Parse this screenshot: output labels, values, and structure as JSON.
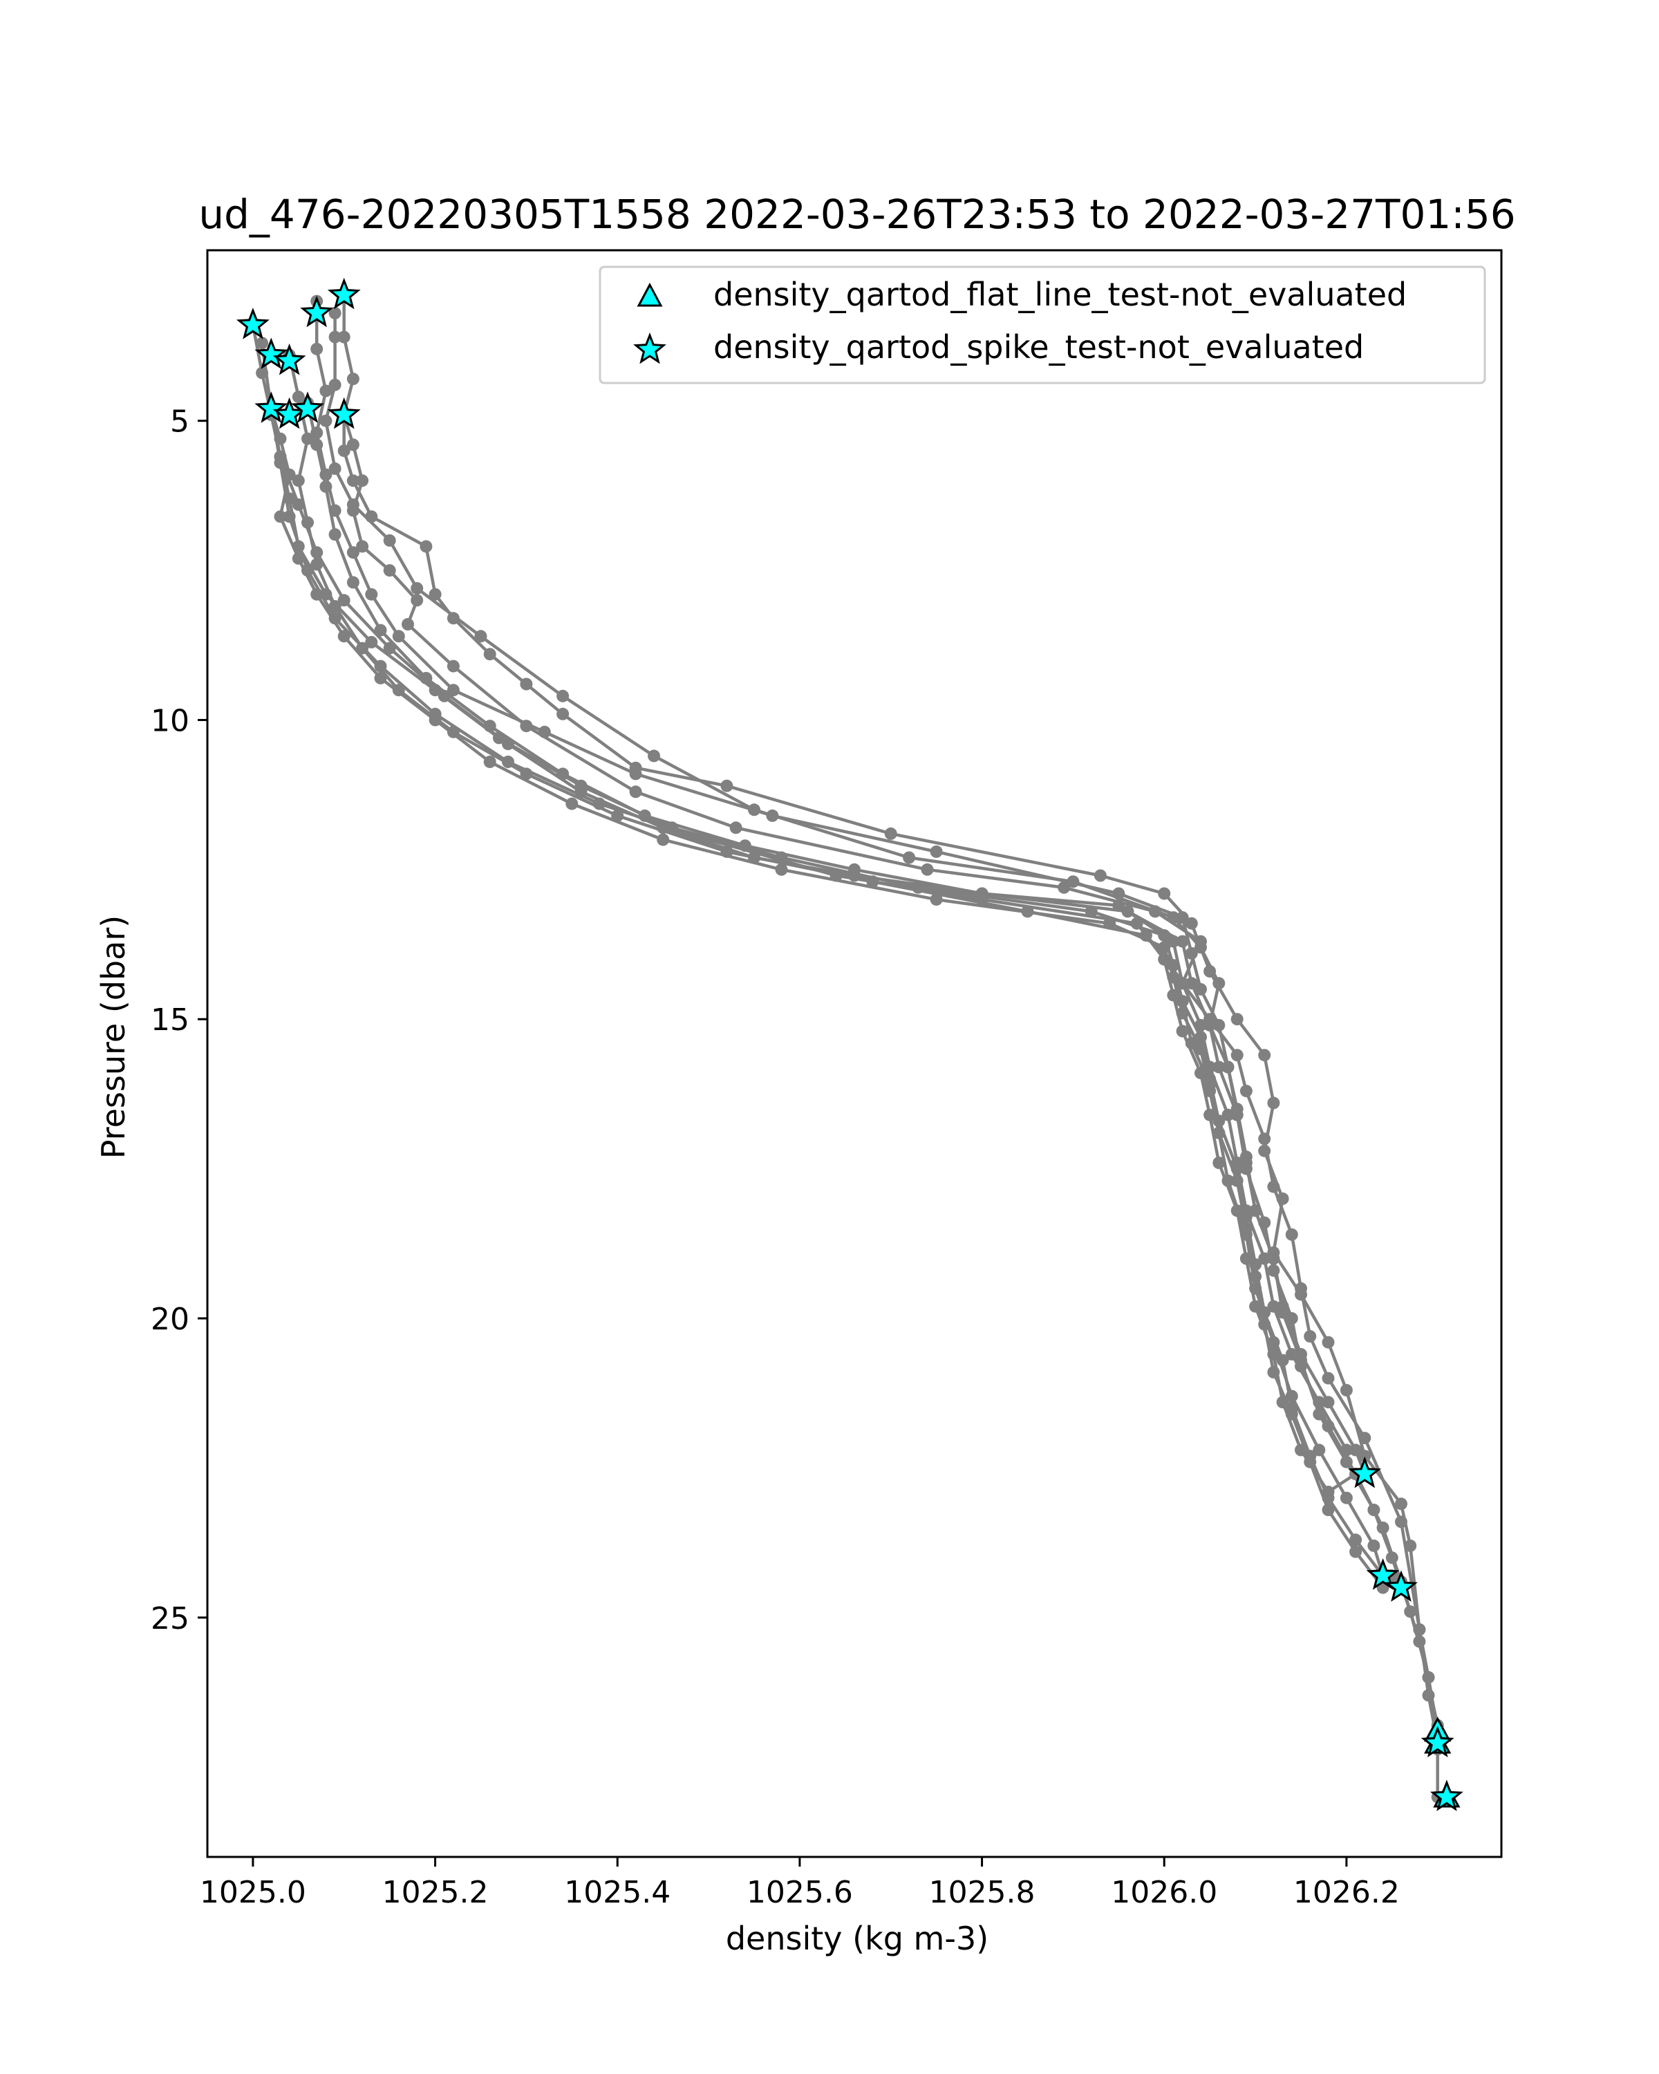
{
  "chart_data": {
    "type": "line",
    "title": "ud_476-20220305T1558 2022-03-26T23:53 to 2022-03-27T01:56",
    "xlabel": "density (kg m-3)",
    "ylabel": "Pressure (dbar)",
    "xlim": [
      1024.95,
      1026.37
    ],
    "ylim": [
      29.0,
      2.15
    ],
    "y_inverted": true,
    "x_ticks": [
      1025.0,
      1025.2,
      1025.4,
      1025.6,
      1025.8,
      1026.0,
      1026.2
    ],
    "x_tick_labels": [
      "1025.0",
      "1025.2",
      "1025.4",
      "1025.6",
      "1025.8",
      "1026.0",
      "1026.2"
    ],
    "y_ticks": [
      5,
      10,
      15,
      20,
      25
    ],
    "y_tick_labels": [
      "5",
      "10",
      "15",
      "20",
      "25"
    ],
    "grid": false,
    "legend_position": "top-right",
    "colors": {
      "profile": "#808080",
      "flag_fill": "#00ffff",
      "flag_edge": "#000000"
    },
    "legend": [
      {
        "label": "density_qartod_flat_line_test-not_evaluated",
        "marker": "triangle"
      },
      {
        "label": "density_qartod_spike_test-not_evaluated",
        "marker": "star"
      }
    ],
    "series": [
      {
        "x": [
          1025.1,
          1025.1,
          1025.11,
          1025.1,
          1025.1,
          1025.11,
          1025.13,
          1025.19,
          1025.2,
          1025.22,
          1025.26,
          1025.3,
          1025.34,
          1025.42,
          1025.52,
          1025.7,
          1025.93,
          1026.0,
          1026.03,
          1026.05,
          1026.08,
          1026.11,
          1026.12,
          1026.11,
          1026.13,
          1026.12,
          1026.15,
          1026.18,
          1026.2,
          1026.22,
          1026.26,
          1026.27,
          1026.28,
          1026.29,
          1026.3,
          1026.3
        ],
        "y": [
          2.9,
          3.6,
          4.3,
          4.9,
          5.5,
          6.0,
          6.6,
          7.1,
          7.9,
          8.3,
          8.9,
          9.4,
          9.9,
          10.8,
          11.1,
          11.9,
          12.6,
          12.9,
          13.4,
          14.2,
          15.0,
          15.6,
          16.4,
          17.2,
          18.0,
          18.9,
          19.6,
          20.4,
          21.2,
          22.3,
          23.1,
          23.8,
          25.2,
          26.0,
          26.9,
          28.0
        ]
      },
      {
        "x": [
          1025.1,
          1025.11,
          1025.12,
          1025.11,
          1025.12,
          1025.15,
          1025.18,
          1025.17,
          1025.22,
          1025.3,
          1025.42,
          1025.53,
          1025.74,
          1025.89,
          1025.99,
          1026.04,
          1026.02,
          1026.05,
          1026.08,
          1026.09,
          1026.11,
          1026.12,
          1026.14,
          1026.15,
          1026.16,
          1026.18,
          1026.22,
          1026.26,
          1026.28,
          1026.29,
          1026.3
        ],
        "y": [
          4.9,
          5.4,
          6.0,
          6.5,
          7.1,
          7.5,
          8.0,
          8.4,
          9.1,
          10.1,
          11.2,
          11.8,
          12.5,
          12.8,
          13.2,
          13.7,
          14.4,
          15.0,
          15.6,
          16.2,
          17.0,
          17.8,
          18.6,
          19.5,
          20.3,
          21.0,
          22.0,
          23.4,
          25.2,
          26.3,
          27.1
        ]
      },
      {
        "x": [
          1025.09,
          1025.09,
          1025.09,
          1025.08,
          1025.09,
          1025.11,
          1025.15,
          1025.18,
          1025.25,
          1025.34,
          1025.44,
          1025.55,
          1025.72,
          1025.9,
          1026.01,
          1026.04,
          1026.06,
          1026.05,
          1026.07,
          1026.08,
          1026.09,
          1026.11,
          1026.12,
          1026.14,
          1026.15,
          1026.18,
          1026.21,
          1026.24,
          1026.26,
          1026.28,
          1026.3
        ],
        "y": [
          3.2,
          3.6,
          4.4,
          5.0,
          5.8,
          6.4,
          7.0,
          7.8,
          8.6,
          9.6,
          10.6,
          11.5,
          12.3,
          12.7,
          13.3,
          13.8,
          14.4,
          15.1,
          15.8,
          16.6,
          17.5,
          18.4,
          19.2,
          20.0,
          20.8,
          21.8,
          22.6,
          23.5,
          24.4,
          25.4,
          26.8
        ]
      },
      {
        "x": [
          1025.07,
          1025.07,
          1025.08,
          1025.07,
          1025.08,
          1025.09,
          1025.11,
          1025.13,
          1025.16,
          1025.22,
          1025.32,
          1025.42,
          1025.57,
          1025.75,
          1025.95,
          1026.02,
          1026.03,
          1026.04,
          1026.06,
          1026.07,
          1026.08,
          1026.09,
          1026.1,
          1026.12,
          1026.13,
          1026.15,
          1026.17,
          1026.2,
          1026.23,
          1026.25,
          1026.27,
          1026.29,
          1026.3
        ],
        "y": [
          3.0,
          3.8,
          4.5,
          5.2,
          5.9,
          6.5,
          7.2,
          7.9,
          8.6,
          9.5,
          10.2,
          10.9,
          11.6,
          12.2,
          12.9,
          13.3,
          13.9,
          14.5,
          15.1,
          15.8,
          16.5,
          17.3,
          18.2,
          19.0,
          19.9,
          20.7,
          21.6,
          22.4,
          23.2,
          24.0,
          24.9,
          26.0,
          27.2
        ]
      },
      {
        "x": [
          1025.04,
          1025.05,
          1025.06,
          1025.05,
          1025.06,
          1025.07,
          1025.09,
          1025.12,
          1025.16,
          1025.22,
          1025.3,
          1025.4,
          1025.52,
          1025.68,
          1025.85,
          1025.98,
          1026.01,
          1026.02,
          1026.04,
          1026.05,
          1026.06,
          1026.08,
          1026.09,
          1026.1,
          1026.11,
          1026.13,
          1026.14,
          1026.16,
          1026.18,
          1026.21,
          1026.24,
          1026.26
        ],
        "y": [
          3.9,
          4.6,
          5.3,
          6.0,
          6.7,
          7.4,
          8.1,
          8.8,
          9.5,
          10.2,
          10.9,
          11.6,
          12.2,
          12.7,
          13.2,
          13.6,
          14.1,
          14.7,
          15.3,
          16.0,
          16.7,
          17.5,
          18.3,
          19.1,
          19.9,
          20.7,
          21.5,
          22.3,
          23.0,
          23.7,
          24.3,
          24.5
        ]
      },
      {
        "x": [
          1025.02,
          1025.03,
          1025.04,
          1025.03,
          1025.05,
          1025.07,
          1025.1,
          1025.14,
          1025.2,
          1025.26,
          1025.35,
          1025.45,
          1025.58,
          1025.75,
          1025.94,
          1026.0,
          1026.01,
          1026.02,
          1026.04,
          1026.05,
          1026.06,
          1026.08,
          1026.09,
          1026.1,
          1026.11,
          1026.12,
          1026.14,
          1026.16,
          1026.18,
          1026.21,
          1026.24,
          1026.25
        ],
        "y": [
          4.8,
          5.3,
          5.9,
          6.6,
          7.3,
          7.9,
          8.6,
          9.3,
          10.0,
          10.7,
          11.4,
          12.0,
          12.5,
          13.0,
          13.4,
          13.8,
          14.3,
          14.9,
          15.5,
          16.2,
          16.9,
          17.7,
          18.5,
          19.3,
          20.1,
          20.9,
          21.6,
          22.4,
          23.2,
          23.9,
          24.5,
          24.3
        ]
      },
      {
        "x": [
          1025.0,
          1025.01,
          1025.02,
          1025.03,
          1025.04,
          1025.05,
          1025.08,
          1025.13,
          1025.2,
          1025.27,
          1025.36,
          1025.46,
          1025.58,
          1025.73,
          1025.92,
          1026.0,
          1026.01,
          1026.02,
          1026.03,
          1026.05,
          1026.06,
          1026.07,
          1026.09,
          1026.1,
          1026.12,
          1026.14,
          1026.17,
          1026.2,
          1026.23,
          1026.24
        ],
        "y": [
          3.4,
          4.2,
          4.9,
          5.6,
          6.3,
          7.1,
          7.9,
          8.7,
          9.5,
          10.3,
          11.1,
          11.8,
          12.3,
          12.8,
          13.2,
          13.6,
          14.1,
          14.7,
          15.4,
          16.1,
          16.9,
          17.7,
          18.6,
          19.5,
          20.4,
          21.3,
          22.2,
          23.0,
          23.8,
          24.3
        ]
      },
      {
        "x": [
          1025.01,
          1025.02,
          1025.03,
          1025.04,
          1025.06,
          1025.09,
          1025.14,
          1025.2,
          1025.28,
          1025.38,
          1025.5,
          1025.64,
          1025.8,
          1025.97,
          1026.0,
          1026.01,
          1026.02,
          1026.04,
          1026.05,
          1026.06,
          1026.08,
          1026.09,
          1026.1,
          1026.12,
          1026.13,
          1026.15,
          1026.18,
          1026.21
        ],
        "y": [
          3.7,
          4.8,
          5.7,
          6.6,
          7.5,
          8.3,
          9.1,
          9.9,
          10.7,
          11.4,
          12.0,
          12.6,
          13.0,
          13.4,
          14.0,
          14.6,
          15.2,
          15.9,
          16.6,
          17.4,
          18.2,
          19.0,
          19.8,
          20.6,
          21.4,
          22.2,
          22.9,
          22.6
        ]
      },
      {
        "x": [
          1025.02,
          1025.03,
          1025.05,
          1025.07,
          1025.1,
          1025.15,
          1025.21,
          1025.28,
          1025.36,
          1025.45,
          1025.55,
          1025.66,
          1025.8,
          1025.95,
          1026.01,
          1026.02,
          1026.04,
          1026.05,
          1026.07,
          1026.08,
          1026.09,
          1026.11,
          1026.12,
          1026.14,
          1026.17,
          1026.2
        ],
        "y": [
          4.8,
          5.6,
          6.4,
          7.2,
          8.0,
          8.8,
          9.6,
          10.4,
          11.2,
          11.8,
          12.3,
          12.6,
          12.9,
          13.1,
          13.7,
          14.4,
          15.1,
          15.8,
          16.6,
          17.4,
          18.2,
          19.0,
          19.8,
          20.6,
          21.4,
          22.2
        ]
      },
      {
        "x": [
          1025.06,
          1025.07,
          1025.08,
          1025.09,
          1025.11,
          1025.14,
          1025.19,
          1025.26,
          1025.34,
          1025.43,
          1025.54,
          1025.66,
          1025.8,
          1025.96,
          1026.02,
          1026.03,
          1026.05,
          1026.06,
          1026.08,
          1026.09,
          1026.1,
          1026.12,
          1026.13,
          1026.15,
          1026.18,
          1026.21,
          1026.22
        ],
        "y": [
          4.7,
          5.4,
          6.1,
          6.9,
          7.7,
          8.5,
          9.3,
          10.1,
          10.9,
          11.6,
          12.1,
          12.5,
          12.9,
          13.2,
          13.7,
          14.4,
          15.1,
          15.8,
          16.6,
          17.4,
          18.2,
          19.0,
          19.8,
          20.6,
          21.4,
          22.2,
          22.6
        ]
      }
    ],
    "flagged_points": {
      "flat_line_test_not_evaluated": [
        {
          "x": 1026.3,
          "y": 26.9
        },
        {
          "x": 1026.3,
          "y": 27.1
        },
        {
          "x": 1026.31,
          "y": 28.0
        }
      ],
      "spike_test_not_evaluated": [
        {
          "x": 1025.0,
          "y": 3.4
        },
        {
          "x": 1025.02,
          "y": 3.9
        },
        {
          "x": 1025.04,
          "y": 4.0
        },
        {
          "x": 1025.07,
          "y": 3.2
        },
        {
          "x": 1025.1,
          "y": 2.9
        },
        {
          "x": 1025.02,
          "y": 4.8
        },
        {
          "x": 1025.04,
          "y": 4.9
        },
        {
          "x": 1025.06,
          "y": 4.8
        },
        {
          "x": 1025.1,
          "y": 4.9
        },
        {
          "x": 1026.22,
          "y": 22.6
        },
        {
          "x": 1026.24,
          "y": 24.3
        },
        {
          "x": 1026.26,
          "y": 24.5
        },
        {
          "x": 1026.3,
          "y": 27.1
        },
        {
          "x": 1026.31,
          "y": 28.0
        }
      ]
    }
  }
}
